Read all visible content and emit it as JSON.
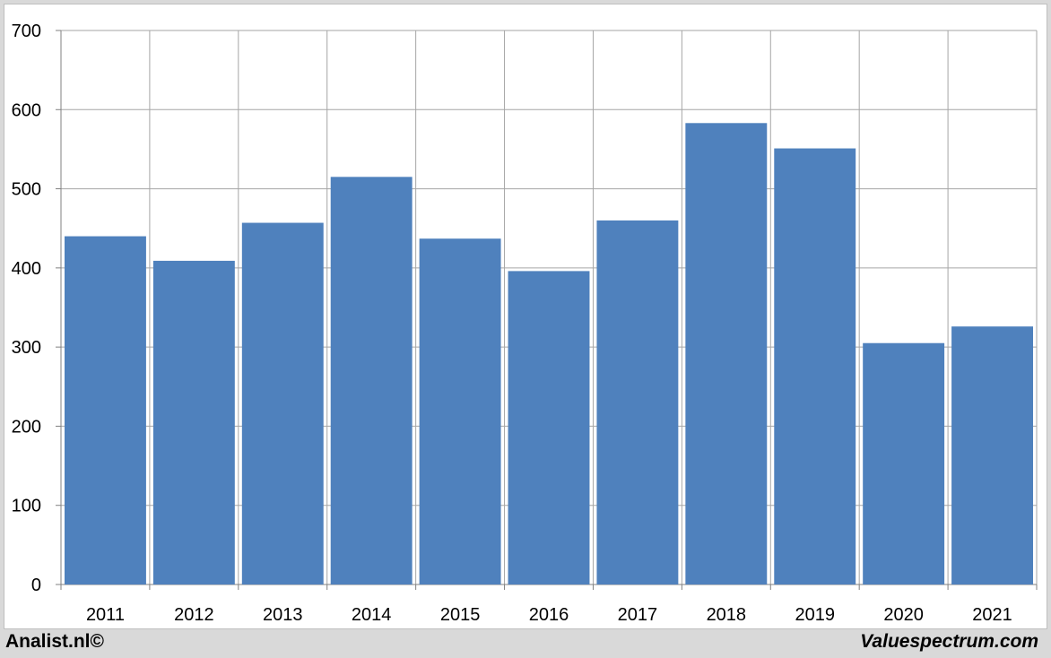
{
  "chart_data": {
    "type": "bar",
    "categories": [
      "2011",
      "2012",
      "2013",
      "2014",
      "2015",
      "2016",
      "2017",
      "2018",
      "2019",
      "2020",
      "2021"
    ],
    "values": [
      440,
      409,
      457,
      515,
      437,
      396,
      460,
      583,
      551,
      305,
      326
    ],
    "title": "",
    "xlabel": "",
    "ylabel": "",
    "ylim": [
      0,
      700
    ],
    "yticks": [
      "0",
      "100",
      "200",
      "300",
      "400",
      "500",
      "600",
      "700"
    ],
    "grid": true,
    "bar_color": "#4f81bd",
    "grid_color": "#a6a6a6"
  },
  "footer": {
    "left": "Analist.nl©",
    "right": "Valuespectrum.com"
  }
}
